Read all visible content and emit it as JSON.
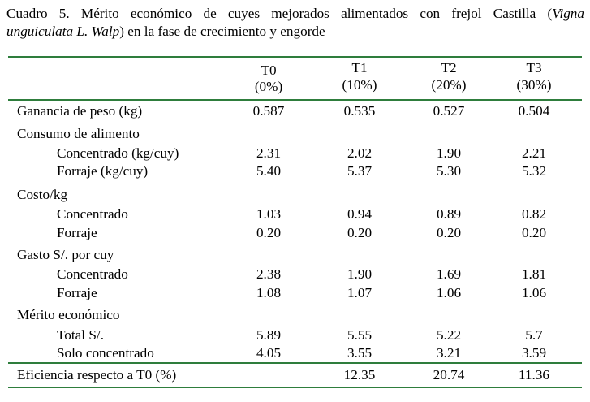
{
  "caption": {
    "prefix": "Cuadro 5.",
    "text_line1": " Mérito económico de cuyes mejorados alimentados con frejol Castilla (",
    "species_a": "Vigna",
    "species_b": "unguiculata L. Walp",
    "text_line2": ") en la fase de crecimiento y engorde"
  },
  "columns": [
    {
      "name": "T0",
      "pct": "(0%)"
    },
    {
      "name": "T1",
      "pct": "(10%)"
    },
    {
      "name": "T2",
      "pct": "(20%)"
    },
    {
      "name": "T3",
      "pct": "(30%)"
    }
  ],
  "rows": {
    "ganancia": {
      "label": "Ganancia de peso (kg)",
      "values": [
        "0.587",
        "0.535",
        "0.527",
        "0.504"
      ]
    },
    "consumo": {
      "label": "Consumo de alimento"
    },
    "consumo_conc": {
      "label": "Concentrado (kg/cuy)",
      "values": [
        "2.31",
        "2.02",
        "1.90",
        "2.21"
      ]
    },
    "consumo_forr": {
      "label": "Forraje (kg/cuy)",
      "values": [
        "5.40",
        "5.37",
        "5.30",
        "5.32"
      ]
    },
    "costo": {
      "label": "Costo/kg"
    },
    "costo_conc": {
      "label": "Concentrado",
      "values": [
        "1.03",
        "0.94",
        "0.89",
        "0.82"
      ]
    },
    "costo_forr": {
      "label": "Forraje",
      "values": [
        "0.20",
        "0.20",
        "0.20",
        "0.20"
      ]
    },
    "gasto": {
      "label": "Gasto S/. por cuy"
    },
    "gasto_conc": {
      "label": "Concentrado",
      "values": [
        "2.38",
        "1.90",
        "1.69",
        "1.81"
      ]
    },
    "gasto_forr": {
      "label": "Forraje",
      "values": [
        "1.08",
        "1.07",
        "1.06",
        "1.06"
      ]
    },
    "merito": {
      "label": "Mérito económico"
    },
    "merito_total": {
      "label": "Total S/.",
      "values": [
        "5.89",
        "5.55",
        "5.22",
        "5.7"
      ]
    },
    "merito_solo": {
      "label": "Solo concentrado",
      "values": [
        "4.05",
        "3.55",
        "3.21",
        "3.59"
      ]
    },
    "eficiencia": {
      "label": "Eficiencia respecto a T0 (%)",
      "values": [
        "",
        "12.35",
        "20.74",
        "11.36"
      ]
    }
  },
  "colors": {
    "rule": "#2e7d3c",
    "text": "#000000"
  }
}
